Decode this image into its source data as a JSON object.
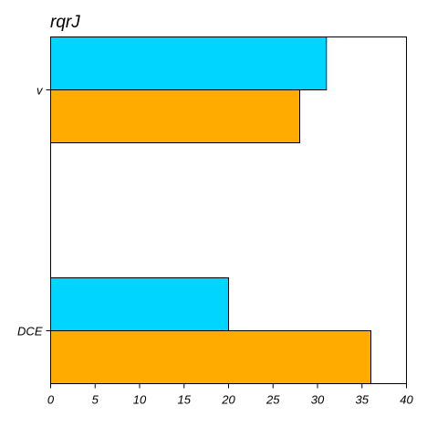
{
  "chart_data": {
    "type": "bar",
    "orientation": "horizontal",
    "title": "rqrJ",
    "xlabel": "",
    "ylabel": "",
    "categories": [
      "v",
      "DCE"
    ],
    "series": [
      {
        "values": [
          31,
          20
        ],
        "color": "#00d5ff"
      },
      {
        "values": [
          28,
          36
        ],
        "color": "#ffab00"
      }
    ],
    "xlim": [
      0,
      40
    ],
    "xticks": [
      0,
      5,
      10,
      15,
      20,
      25,
      30,
      35,
      40
    ],
    "grid": false,
    "legend": false
  }
}
